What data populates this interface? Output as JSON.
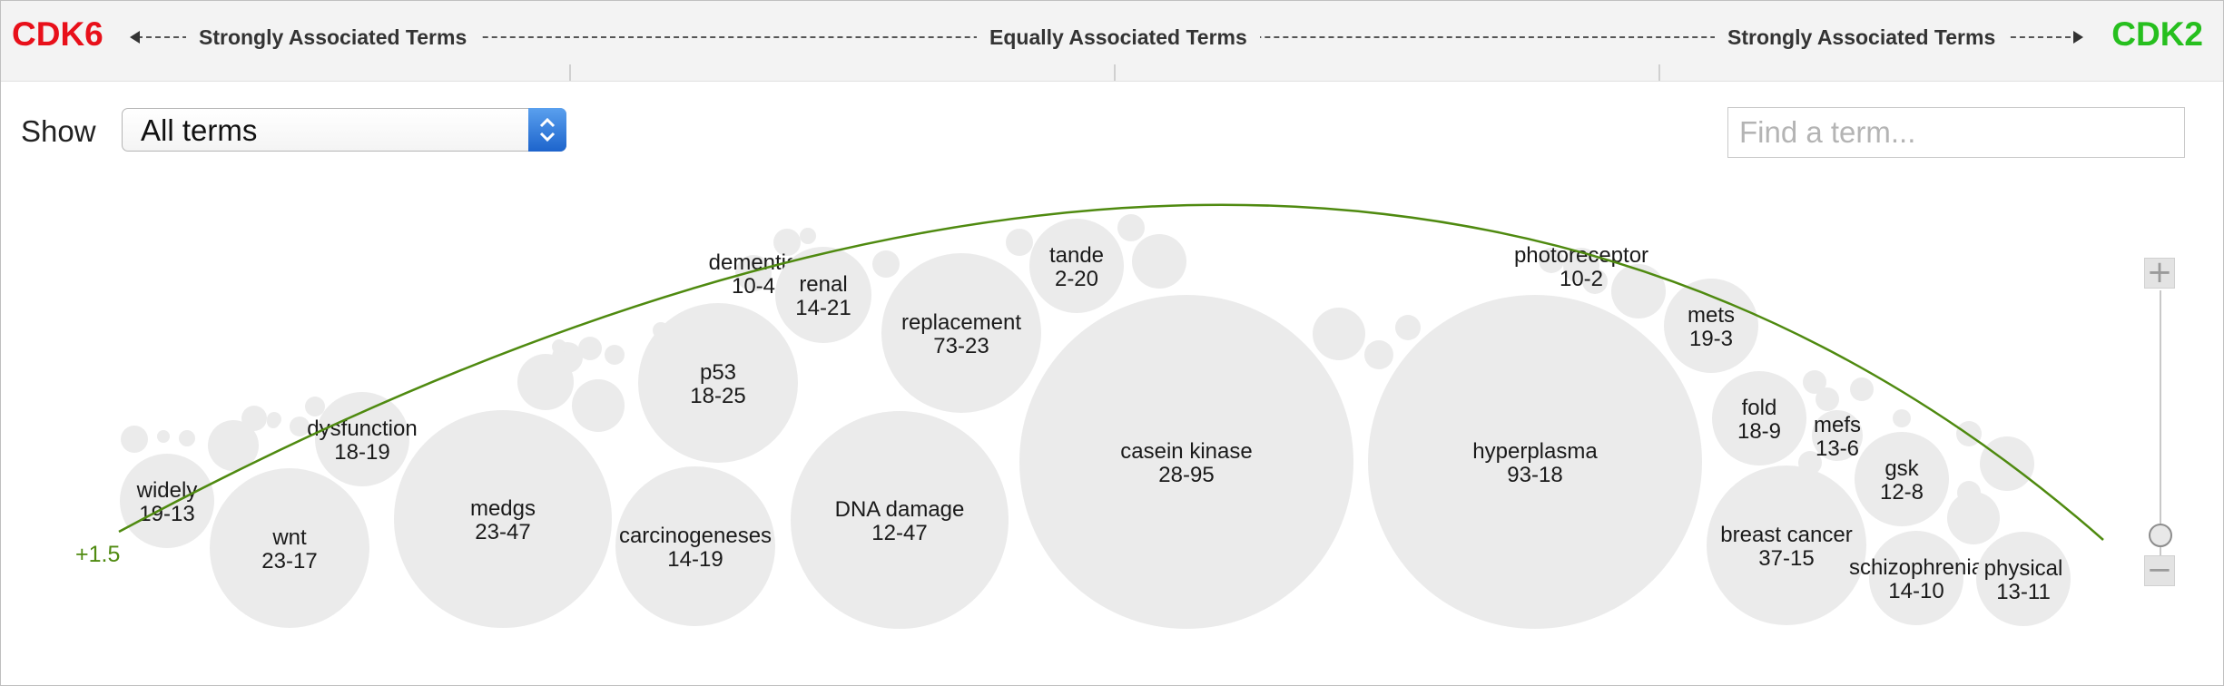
{
  "header": {
    "gene_left": "CDK6",
    "gene_right": "CDK2",
    "gene_left_color": "#e8101a",
    "gene_right_color": "#26bf1e",
    "left_label": "Strongly Associated Terms",
    "center_label": "Equally Associated Terms",
    "right_label": "Strongly Associated Terms"
  },
  "controls": {
    "show_label": "Show",
    "filter_value": "All terms",
    "search_placeholder": "Find a term..."
  },
  "curve": {
    "label": "+1.5",
    "color": "#4f8a10"
  },
  "zoom": {
    "in_icon": "plus-icon",
    "out_icon": "minus-icon",
    "level": 0.05
  },
  "bubble_fill": "#ebebeb",
  "terms": [
    {
      "name": "widely",
      "score": "19-13"
    },
    {
      "name": "wnt",
      "score": "23-17"
    },
    {
      "name": "dysfunction",
      "score": "18-19"
    },
    {
      "name": "medgs",
      "score": "23-47"
    },
    {
      "name": "carcinogeneses",
      "score": "14-19"
    },
    {
      "name": "p53",
      "score": "18-25"
    },
    {
      "name": "dementia",
      "score": "10-4"
    },
    {
      "name": "renal",
      "score": "14-21"
    },
    {
      "name": "DNA damage",
      "score": "12-47"
    },
    {
      "name": "replacement",
      "score": "73-23"
    },
    {
      "name": "tande",
      "score": "2-20"
    },
    {
      "name": "casein kinase",
      "score": "28-95"
    },
    {
      "name": "hyperplasma",
      "score": "93-18"
    },
    {
      "name": "photoreceptor",
      "score": "10-2"
    },
    {
      "name": "mets",
      "score": "19-3"
    },
    {
      "name": "fold",
      "score": "18-9"
    },
    {
      "name": "mefs",
      "score": "13-6"
    },
    {
      "name": "gsk",
      "score": "12-8"
    },
    {
      "name": "breast cancer",
      "score": "37-15"
    },
    {
      "name": "schizophrenia",
      "score": "14-10"
    },
    {
      "name": "physical",
      "score": "13-11"
    }
  ]
}
